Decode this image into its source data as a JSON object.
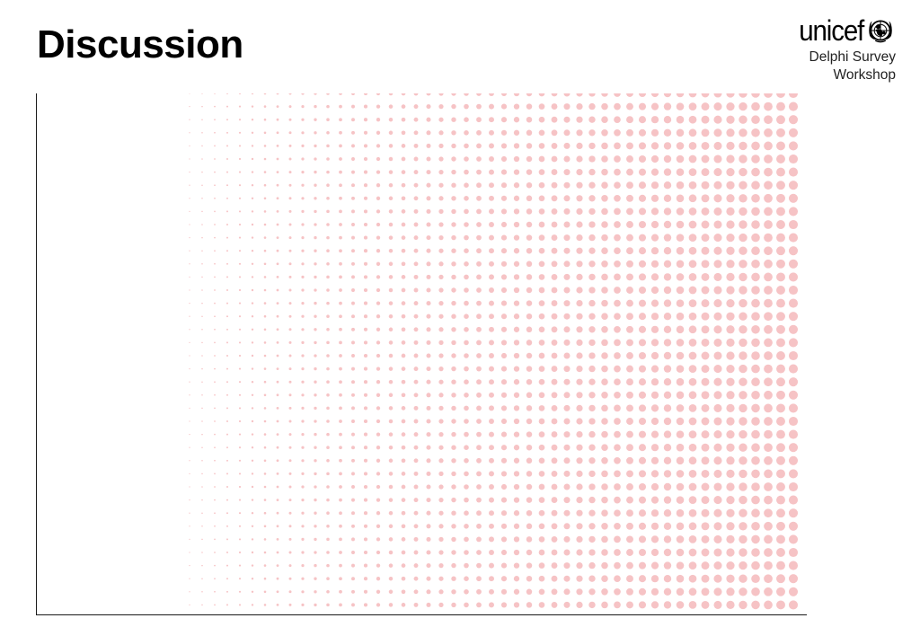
{
  "slide": {
    "title": "Discussion"
  },
  "branding": {
    "logo_text": "unicef",
    "logo_icon": "unicef-emblem-icon",
    "subtitle_line1": "Delphi Survey",
    "subtitle_line2": "Workshop"
  },
  "decor": {
    "pattern": "halftone-dot-gradient",
    "dot_color": "#f6c3c5"
  }
}
